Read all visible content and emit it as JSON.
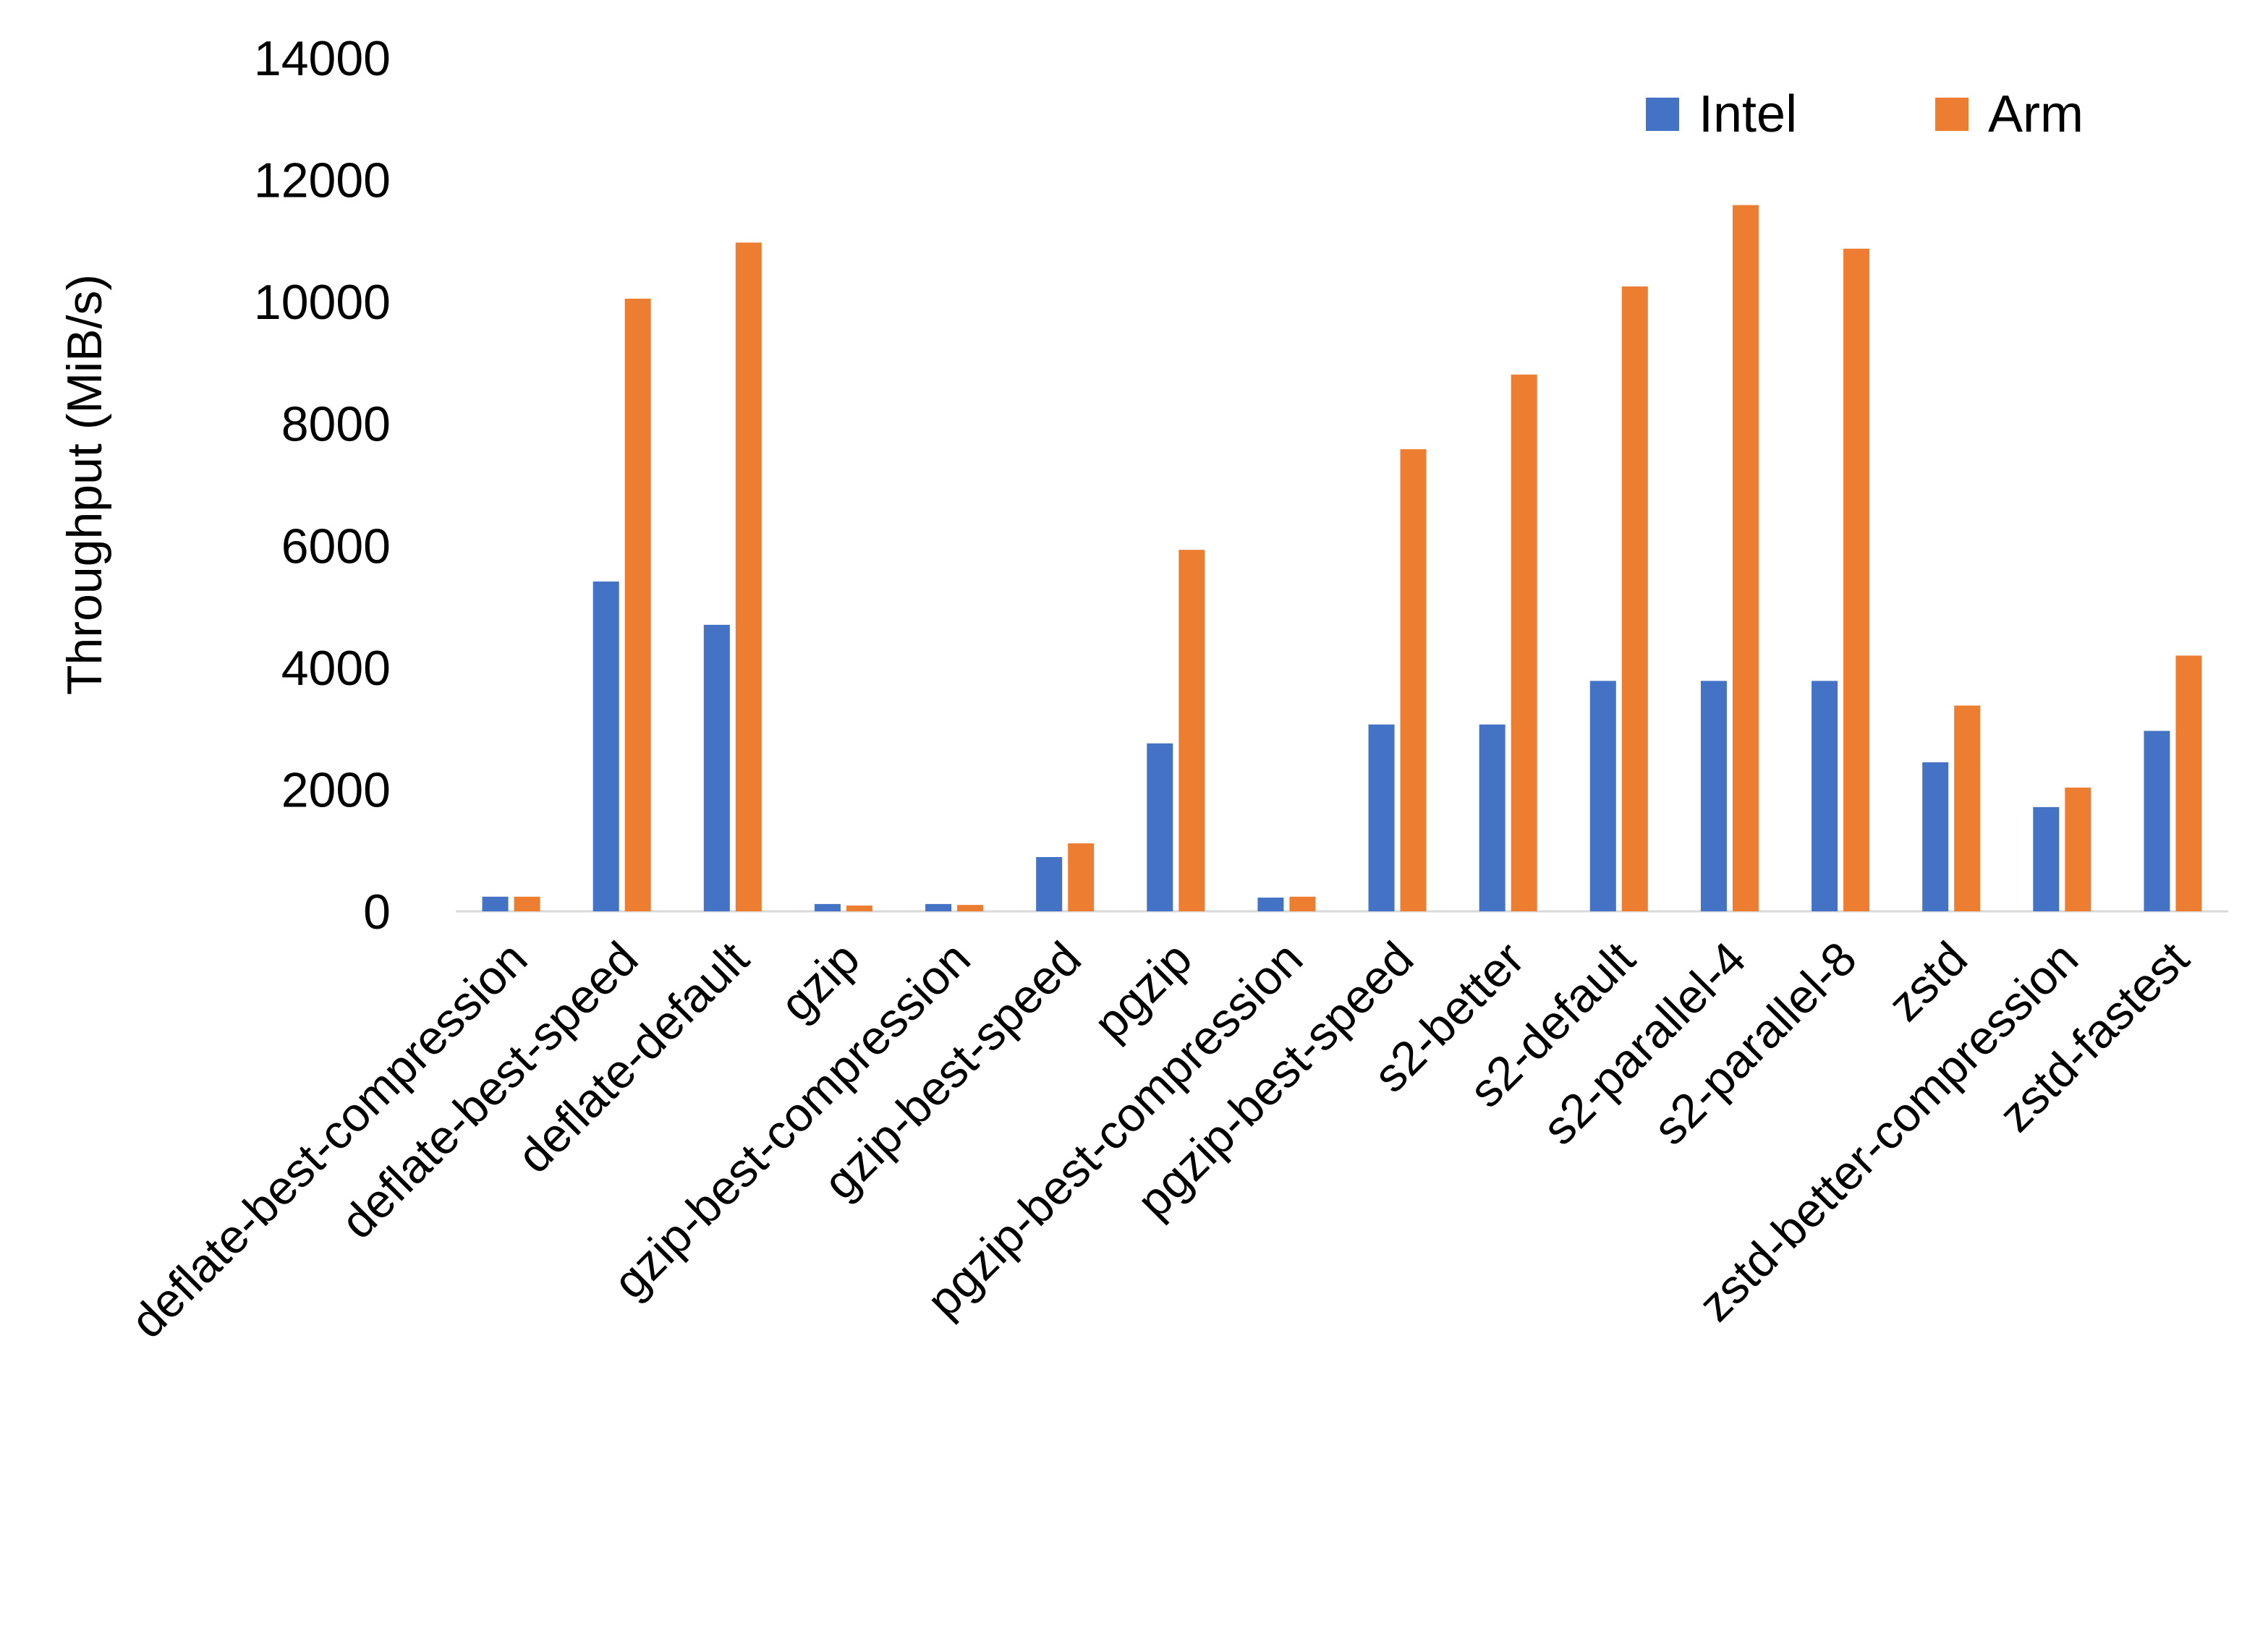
{
  "chart_data": {
    "type": "bar",
    "title": "",
    "xlabel": "",
    "ylabel": "Throughput (MiB/s)",
    "ylim": [
      0,
      14000
    ],
    "yticks": [
      0,
      2000,
      4000,
      6000,
      8000,
      10000,
      12000,
      14000
    ],
    "grid": false,
    "legend_position": "top-right",
    "categories": [
      "deflate-best-compression",
      "deflate-best-speed",
      "deflate-default",
      "gzip",
      "gzip-best-compression",
      "gzip-best-speed",
      "pgzip",
      "pgzip-best-compression",
      "pgzip-best-speed",
      "s2-better",
      "s2-default",
      "s2-parallel-4",
      "s2-parallel-8",
      "zstd",
      "zstd-better-compression",
      "zstd-fastest"
    ],
    "series": [
      {
        "name": "Intel",
        "color": "#4472C4",
        "values": [
          240,
          5410,
          4700,
          120,
          120,
          890,
          2755,
          225,
          3065,
          3065,
          3780,
          3780,
          3780,
          2445,
          1710,
          2960
        ]
      },
      {
        "name": "Arm",
        "color": "#ED7D31",
        "values": [
          240,
          10050,
          10970,
          95,
          105,
          1115,
          5930,
          240,
          7580,
          8805,
          10250,
          11585,
          10870,
          3375,
          2030,
          4195
        ]
      }
    ]
  }
}
